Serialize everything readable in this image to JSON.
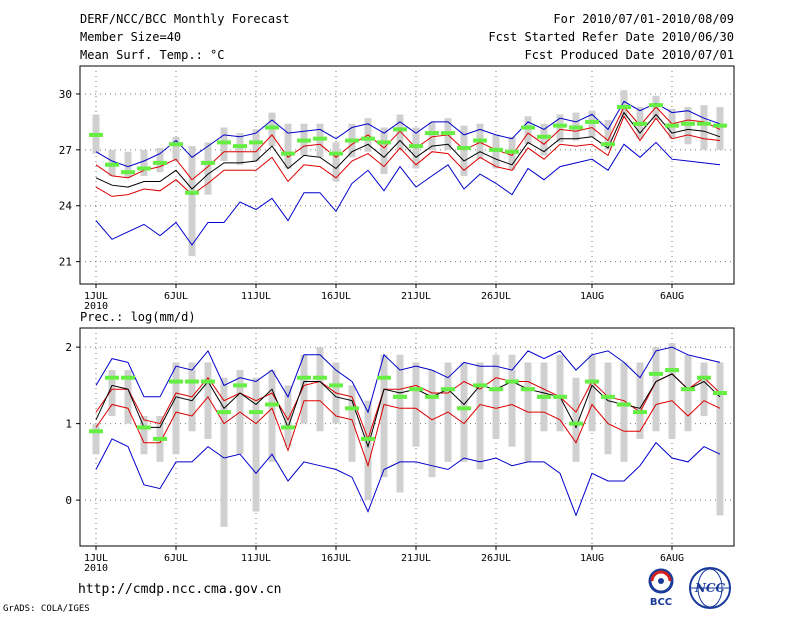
{
  "header": {
    "title": "DERF/NCC/BCC Monthly Forecast",
    "member_size": "Member Size=40",
    "variable_top": "Mean Surf. Temp.: °C",
    "period": "For 2010/07/01-2010/08/09",
    "started": "Fcst Started Refer Date 2010/06/30",
    "produced": "Fcst Produced Date 2010/07/01"
  },
  "footer": {
    "url": "http://cmdp.ncc.cma.gov.cn",
    "grads": "GrADS: COLA/IGES",
    "logo_bcc": "BCC",
    "logo_ncc": "NCC"
  },
  "colors": {
    "max_min": "#0000cc",
    "band": "#dd0000",
    "mean": "#000000",
    "median": "#22aa22",
    "spread": "#d0d0d0",
    "observed": "#66ee44"
  },
  "chart_data": [
    {
      "type": "line",
      "title": "Mean Surf. Temp.: °C",
      "x_labels": [
        "1JUL",
        "6JUL",
        "11JUL",
        "16JUL",
        "21JUL",
        "26JUL",
        "1AUG",
        "6AUG"
      ],
      "x_label_positions": [
        1,
        6,
        11,
        16,
        21,
        26,
        32,
        37
      ],
      "year_label": "2010",
      "ylim": [
        19.8,
        31.5
      ],
      "yticks": [
        21,
        24,
        27,
        30
      ],
      "ytick_labels": [
        "21",
        "24",
        "27",
        "30"
      ],
      "series": [
        {
          "name": "max",
          "values": [
            26.9,
            26.4,
            26.1,
            26.4,
            26.8,
            27.5,
            26.6,
            27.2,
            27.8,
            27.7,
            27.9,
            28.6,
            27.9,
            28.0,
            28.1,
            27.6,
            28.2,
            28.4,
            27.9,
            28.5,
            27.9,
            28.5,
            28.5,
            27.8,
            28.1,
            27.8,
            27.6,
            28.5,
            28.1,
            28.7,
            28.5,
            28.9,
            28.1,
            29.6,
            29.1,
            29.5,
            29.0,
            29.1,
            28.7,
            28.4
          ]
        },
        {
          "name": "upper",
          "values": [
            26.2,
            25.6,
            25.5,
            25.9,
            26.1,
            26.5,
            25.4,
            26.1,
            26.9,
            26.9,
            26.9,
            27.8,
            26.6,
            27.2,
            27.3,
            26.6,
            27.3,
            27.8,
            27.1,
            28.0,
            27.1,
            27.7,
            27.8,
            27.0,
            27.4,
            27.0,
            26.7,
            27.9,
            27.3,
            28.1,
            28.0,
            28.2,
            27.5,
            29.3,
            28.3,
            29.3,
            28.4,
            28.6,
            28.5,
            28.1
          ]
        },
        {
          "name": "mean",
          "values": [
            25.5,
            25.1,
            25.0,
            25.3,
            25.3,
            25.9,
            24.9,
            25.7,
            26.3,
            26.3,
            26.4,
            27.2,
            26.0,
            26.7,
            26.6,
            26.0,
            26.9,
            27.3,
            26.6,
            27.5,
            26.6,
            27.2,
            27.3,
            26.4,
            26.9,
            26.5,
            26.2,
            27.4,
            26.9,
            27.6,
            27.6,
            27.7,
            27.1,
            29.0,
            27.9,
            28.9,
            27.9,
            28.1,
            28.0,
            27.7
          ]
        },
        {
          "name": "lower",
          "values": [
            25.0,
            24.5,
            24.6,
            24.9,
            24.8,
            25.4,
            24.6,
            25.2,
            25.9,
            25.9,
            25.9,
            26.6,
            25.3,
            26.2,
            26.1,
            25.5,
            26.4,
            26.8,
            26.1,
            27.1,
            26.2,
            26.9,
            26.8,
            25.9,
            26.6,
            26.1,
            25.9,
            27.1,
            26.5,
            27.3,
            27.2,
            27.3,
            26.7,
            28.8,
            27.5,
            28.7,
            27.6,
            27.8,
            27.6,
            27.5
          ]
        },
        {
          "name": "min",
          "values": [
            23.2,
            22.2,
            22.6,
            23.0,
            22.4,
            23.1,
            21.9,
            23.1,
            23.1,
            24.2,
            23.8,
            24.4,
            23.2,
            24.7,
            24.7,
            23.7,
            25.2,
            25.9,
            24.8,
            26.1,
            25.0,
            25.6,
            26.2,
            24.9,
            25.7,
            25.2,
            24.6,
            26.0,
            25.4,
            26.1,
            26.3,
            26.5,
            25.9,
            27.3,
            26.6,
            27.4,
            26.5,
            26.4,
            26.3,
            26.2
          ]
        }
      ],
      "median": [
        27.8,
        26.2,
        25.8,
        26.0,
        26.3,
        27.3,
        24.7,
        26.3,
        27.4,
        27.2,
        27.4,
        28.2,
        26.8,
        27.5,
        27.6,
        26.8,
        27.5,
        27.6,
        27.4,
        28.1,
        27.2,
        27.9,
        27.9,
        27.1,
        27.5,
        27.0,
        26.9,
        28.2,
        27.7,
        28.3,
        28.2,
        28.5,
        27.3,
        29.3,
        28.4,
        29.4,
        28.3,
        28.4,
        28.4,
        28.3
      ],
      "spread_low": [
        26.8,
        25.6,
        25.5,
        25.6,
        25.8,
        26.4,
        21.3,
        24.6,
        26.4,
        26.2,
        26.4,
        27.2,
        26.0,
        26.7,
        26.6,
        25.3,
        26.6,
        26.9,
        25.7,
        27.0,
        26.0,
        27.0,
        27.0,
        25.6,
        26.5,
        26.0,
        25.9,
        27.3,
        26.7,
        27.4,
        27.5,
        27.7,
        27.0,
        28.7,
        27.6,
        28.6,
        27.6,
        27.3,
        27.0,
        27.0
      ],
      "spread_high": [
        28.9,
        27.0,
        26.9,
        27.0,
        27.1,
        27.7,
        27.2,
        27.4,
        28.2,
        27.9,
        28.1,
        29.0,
        28.4,
        28.4,
        28.4,
        27.4,
        28.4,
        28.7,
        28.2,
        28.9,
        28.2,
        28.5,
        28.7,
        28.3,
        28.4,
        27.8,
        27.7,
        28.8,
        28.4,
        28.9,
        29.0,
        29.1,
        28.6,
        30.2,
        29.3,
        29.9,
        29.2,
        29.3,
        29.4,
        29.3
      ]
    },
    {
      "type": "line",
      "title": "Prec.: log(mm/d)",
      "x_labels": [
        "1JUL",
        "6JUL",
        "11JUL",
        "16JUL",
        "21JUL",
        "26JUL",
        "1AUG",
        "6AUG"
      ],
      "x_label_positions": [
        1,
        6,
        11,
        16,
        21,
        26,
        32,
        37
      ],
      "year_label": "2010",
      "ylim": [
        -0.6,
        2.25
      ],
      "yticks": [
        0,
        1,
        2
      ],
      "ytick_labels": [
        "0",
        "1",
        "2"
      ],
      "series": [
        {
          "name": "max",
          "values": [
            1.5,
            1.85,
            1.8,
            1.35,
            1.35,
            1.75,
            1.7,
            1.95,
            1.5,
            1.6,
            1.55,
            1.7,
            1.35,
            1.9,
            1.9,
            1.7,
            1.55,
            1.15,
            1.9,
            1.7,
            1.75,
            1.7,
            1.6,
            1.8,
            1.75,
            1.75,
            1.7,
            1.95,
            1.85,
            1.95,
            1.7,
            1.9,
            1.95,
            1.8,
            1.6,
            1.95,
            2.0,
            1.9,
            1.85,
            1.8
          ]
        },
        {
          "name": "upper",
          "values": [
            1.15,
            1.45,
            1.45,
            1.05,
            1.0,
            1.4,
            1.35,
            1.6,
            1.3,
            1.4,
            1.3,
            1.4,
            1.05,
            1.5,
            1.55,
            1.4,
            1.35,
            0.8,
            1.45,
            1.45,
            1.5,
            1.4,
            1.4,
            1.55,
            1.45,
            1.6,
            1.55,
            1.55,
            1.45,
            1.35,
            1.15,
            1.55,
            1.35,
            1.3,
            1.15,
            1.55,
            1.65,
            1.45,
            1.6,
            1.4
          ]
        },
        {
          "name": "mean",
          "values": [
            1.05,
            1.5,
            1.45,
            0.95,
            0.95,
            1.35,
            1.3,
            1.55,
            1.2,
            1.4,
            1.25,
            1.45,
            0.95,
            1.55,
            1.55,
            1.35,
            1.3,
            0.7,
            1.45,
            1.4,
            1.45,
            1.35,
            1.45,
            1.25,
            1.5,
            1.45,
            1.55,
            1.45,
            1.4,
            1.35,
            0.95,
            1.5,
            1.3,
            1.25,
            1.2,
            1.55,
            1.65,
            1.45,
            1.55,
            1.35
          ]
        },
        {
          "name": "lower",
          "values": [
            0.95,
            1.25,
            1.2,
            0.75,
            0.75,
            1.15,
            1.1,
            1.35,
            1.0,
            1.15,
            1.0,
            1.2,
            0.65,
            1.3,
            1.3,
            1.1,
            1.05,
            0.45,
            1.25,
            1.2,
            1.2,
            1.05,
            1.15,
            1.0,
            1.25,
            1.2,
            1.25,
            1.15,
            1.15,
            1.05,
            0.75,
            1.25,
            1.0,
            0.9,
            0.9,
            1.25,
            1.3,
            1.1,
            1.3,
            1.2
          ]
        },
        {
          "name": "min",
          "values": [
            0.4,
            0.8,
            0.7,
            0.2,
            0.15,
            0.5,
            0.5,
            0.7,
            0.55,
            0.6,
            0.35,
            0.6,
            0.25,
            0.5,
            0.45,
            0.4,
            0.3,
            -0.15,
            0.4,
            0.5,
            0.5,
            0.45,
            0.4,
            0.55,
            0.5,
            0.55,
            0.45,
            0.5,
            0.5,
            0.35,
            -0.2,
            0.35,
            0.25,
            0.25,
            0.45,
            0.75,
            0.55,
            0.5,
            0.7,
            0.6
          ]
        }
      ],
      "median": [
        0.9,
        1.6,
        1.6,
        0.95,
        0.8,
        1.55,
        1.55,
        1.55,
        1.15,
        1.5,
        1.15,
        1.25,
        0.95,
        1.6,
        1.6,
        1.5,
        1.2,
        0.8,
        1.6,
        1.35,
        1.45,
        1.35,
        1.45,
        1.2,
        1.5,
        1.45,
        1.55,
        1.45,
        1.35,
        1.35,
        1.0,
        1.55,
        1.35,
        1.25,
        1.15,
        1.65,
        1.7,
        1.45,
        1.6,
        1.4
      ],
      "spread_low": [
        0.6,
        1.1,
        1.0,
        0.6,
        0.5,
        0.6,
        0.9,
        0.8,
        -0.35,
        0.6,
        -0.15,
        0.5,
        0.7,
        1.0,
        0.9,
        1.0,
        0.5,
        0.0,
        0.3,
        0.1,
        0.7,
        0.3,
        0.5,
        0.5,
        0.4,
        0.8,
        0.7,
        0.5,
        0.9,
        0.9,
        0.5,
        0.9,
        0.6,
        0.5,
        0.8,
        0.9,
        0.8,
        0.9,
        1.1,
        -0.2
      ],
      "spread_high": [
        1.0,
        1.7,
        1.7,
        1.1,
        1.1,
        1.8,
        1.8,
        1.8,
        1.6,
        1.7,
        1.6,
        1.7,
        1.5,
        1.9,
        2.0,
        1.8,
        1.5,
        1.3,
        1.9,
        1.9,
        1.8,
        1.7,
        1.8,
        1.8,
        1.8,
        1.9,
        1.9,
        1.8,
        1.8,
        1.9,
        1.6,
        1.9,
        1.8,
        1.8,
        1.8,
        2.0,
        2.05,
        1.9,
        1.8,
        1.8
      ]
    }
  ]
}
